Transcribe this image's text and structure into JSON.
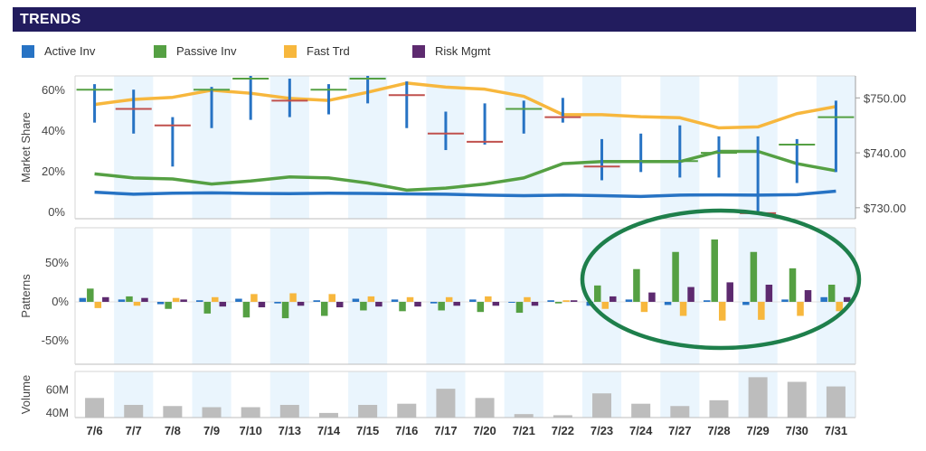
{
  "title": "TRENDS",
  "colors": {
    "title_bg": "#221c5e",
    "active": "#2773c4",
    "passive": "#55a043",
    "fast": "#f7b73d",
    "risk": "#5d2a6f",
    "close_marker": "#c0504d",
    "volume_bar": "#bdbdbd",
    "band": "#eaf5fd",
    "highlight": "#1e7f4b"
  },
  "legend": [
    {
      "key": "active",
      "label": "Active Inv"
    },
    {
      "key": "passive",
      "label": "Passive Inv"
    },
    {
      "key": "fast",
      "label": "Fast Trd"
    },
    {
      "key": "risk",
      "label": "Risk Mgmt"
    }
  ],
  "chart_data": [
    {
      "type": "line",
      "panel": "market_share",
      "ylabel": "Market Share",
      "ylim": [
        -3,
        67
      ],
      "y_ticks": [
        "0%",
        "20%",
        "40%",
        "60%"
      ],
      "y2lim": [
        728,
        754
      ],
      "y2_ticks": [
        "$730.00",
        "$740.00",
        "$750.00"
      ],
      "categories": [
        "7/6",
        "7/7",
        "7/8",
        "7/9",
        "7/10",
        "7/13",
        "7/14",
        "7/15",
        "7/16",
        "7/17",
        "7/20",
        "7/21",
        "7/22",
        "7/23",
        "7/24",
        "7/27",
        "7/28",
        "7/29",
        "7/30",
        "7/31"
      ],
      "series": [
        {
          "key": "active",
          "values": [
            10,
            9,
            9.5,
            9.7,
            9.4,
            9.3,
            9.5,
            9.4,
            9.2,
            9,
            8.6,
            8.3,
            8.6,
            8.3,
            7.9,
            8.6,
            8.7,
            8.6,
            8.8,
            10.5
          ]
        },
        {
          "key": "passive",
          "values": [
            19,
            17,
            16.5,
            14,
            15.5,
            17.5,
            17,
            14.5,
            11,
            12,
            14,
            17,
            24,
            25,
            25,
            25,
            30,
            30,
            24,
            20.5
          ]
        },
        {
          "key": "fast",
          "values": [
            53,
            55.5,
            56.5,
            60,
            58.5,
            56,
            55,
            59,
            63.5,
            61.5,
            60.5,
            57,
            48,
            48,
            47,
            46.5,
            41.5,
            42,
            48.5,
            52
          ]
        }
      ],
      "price_ohlc": [
        {
          "high": 752.5,
          "low": 745.5,
          "open": 751.5,
          "close": 751.5
        },
        {
          "high": 751.5,
          "low": 743.5,
          "open": 748.0,
          "close": 748.0
        },
        {
          "high": 746.5,
          "low": 737.5,
          "open": 745.0,
          "close": 745.0
        },
        {
          "high": 752.0,
          "low": 744.5,
          "open": 751.5,
          "close": 751.5
        },
        {
          "high": 754.0,
          "low": 746.0,
          "open": 753.5,
          "close": 753.5
        },
        {
          "high": 753.5,
          "low": 746.5,
          "open": 749.5,
          "close": 749.5
        },
        {
          "high": 752.5,
          "low": 747.0,
          "open": 751.5,
          "close": 751.5
        },
        {
          "high": 754.0,
          "low": 749.0,
          "open": 753.5,
          "close": 753.5
        },
        {
          "high": 753.0,
          "low": 744.5,
          "open": 750.5,
          "close": 750.5
        },
        {
          "high": 747.5,
          "low": 740.5,
          "open": 743.5,
          "close": 743.5
        },
        {
          "high": 749.0,
          "low": 741.5,
          "open": 742.0,
          "close": 742.0
        },
        {
          "high": 749.5,
          "low": 743.5,
          "open": 748.0,
          "close": 748.0
        },
        {
          "high": 750.0,
          "low": 745.5,
          "open": 746.5,
          "close": 746.5
        },
        {
          "high": 742.5,
          "low": 735.0,
          "open": 737.5,
          "close": 737.5
        },
        {
          "high": 743.5,
          "low": 736.5,
          "open": 738.5,
          "close": 738.5
        },
        {
          "high": 745.0,
          "low": 735.5,
          "open": 738.5,
          "close": 738.5
        },
        {
          "high": 743.0,
          "low": 735.5,
          "open": 740.0,
          "close": 740.0
        },
        {
          "high": 743.0,
          "low": 729.0,
          "open": 729.0,
          "close": 729.0
        },
        {
          "high": 742.5,
          "low": 734.5,
          "open": 741.5,
          "close": 741.5
        },
        {
          "high": 749.5,
          "low": 736.5,
          "open": 746.5,
          "close": 746.5
        }
      ]
    },
    {
      "type": "bar",
      "panel": "patterns",
      "ylabel": "Patterns",
      "ylim": [
        -80,
        95
      ],
      "y_ticks": [
        "50%",
        "0%",
        "-50%"
      ],
      "categories": [
        "7/6",
        "7/7",
        "7/8",
        "7/9",
        "7/10",
        "7/13",
        "7/14",
        "7/15",
        "7/16",
        "7/17",
        "7/20",
        "7/21",
        "7/22",
        "7/23",
        "7/24",
        "7/27",
        "7/28",
        "7/29",
        "7/30",
        "7/31"
      ],
      "series": [
        {
          "key": "active",
          "values": [
            5,
            3,
            -3,
            2,
            4,
            -2,
            2,
            4,
            3,
            -2,
            3,
            -1,
            2,
            -5,
            3,
            -4,
            2,
            -4,
            3,
            6
          ]
        },
        {
          "key": "passive",
          "values": [
            17,
            7,
            -9,
            -15,
            -20,
            -21,
            -18,
            -11,
            -12,
            -11,
            -13,
            -14,
            -2,
            21,
            42,
            64,
            80,
            64,
            43,
            22
          ]
        },
        {
          "key": "fast",
          "values": [
            -8,
            -5,
            5,
            6,
            10,
            11,
            10,
            7,
            6,
            6,
            7,
            6,
            2,
            -9,
            -13,
            -18,
            -24,
            -23,
            -18,
            -12
          ]
        },
        {
          "key": "risk",
          "values": [
            6,
            5,
            3,
            -6,
            -7,
            -5,
            -7,
            -6,
            -6,
            -5,
            -5,
            -5,
            2,
            7,
            12,
            19,
            25,
            22,
            15,
            6
          ]
        }
      ]
    },
    {
      "type": "bar",
      "panel": "volume",
      "ylabel": "Volume",
      "ylim": [
        36,
        76
      ],
      "y_ticks": [
        "60M",
        "40M"
      ],
      "categories": [
        "7/6",
        "7/7",
        "7/8",
        "7/9",
        "7/10",
        "7/13",
        "7/14",
        "7/15",
        "7/16",
        "7/17",
        "7/20",
        "7/21",
        "7/22",
        "7/23",
        "7/24",
        "7/27",
        "7/28",
        "7/29",
        "7/30",
        "7/31"
      ],
      "values": [
        53,
        47,
        46,
        45,
        45,
        47,
        40,
        47,
        48,
        61,
        53,
        39,
        38,
        57,
        48,
        46,
        51,
        71,
        67,
        63
      ]
    }
  ]
}
